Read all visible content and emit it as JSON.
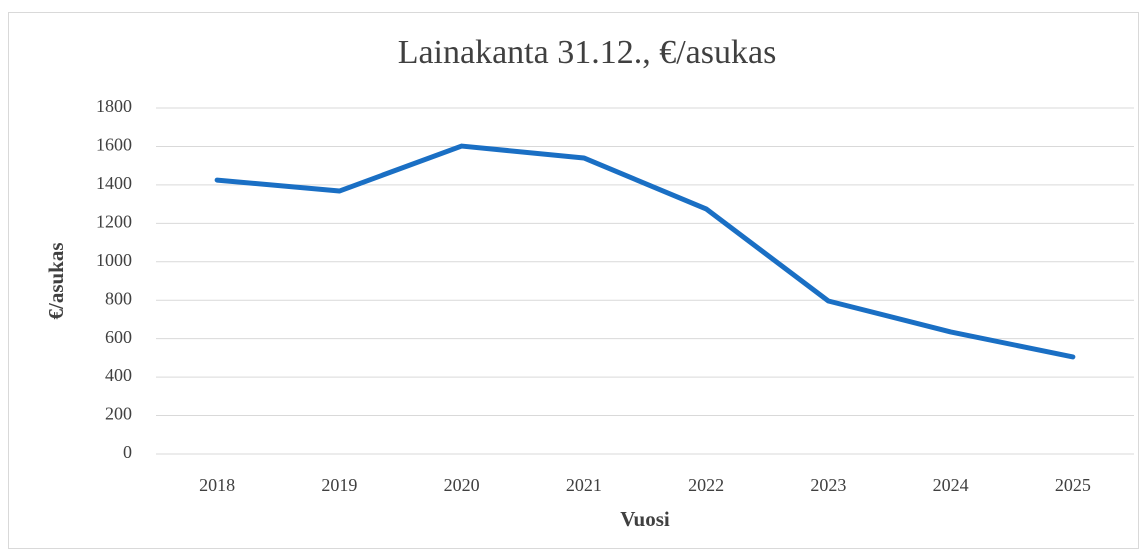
{
  "chart_data": {
    "type": "line",
    "title": "Lainakanta 31.12., €/asukas",
    "x_label": "Vuosi",
    "y_label": "€/asukas",
    "categories": [
      "2018",
      "2019",
      "2020",
      "2021",
      "2022",
      "2023",
      "2024",
      "2025"
    ],
    "series": [
      {
        "name": "Lainakanta",
        "color": "#1a6fc4",
        "values": [
          1425,
          1368,
          1602,
          1540,
          1275,
          796,
          635,
          505
        ]
      }
    ],
    "ylim": [
      0,
      1800
    ],
    "yticks": [
      0,
      200,
      400,
      600,
      800,
      1000,
      1200,
      1400,
      1600,
      1800
    ],
    "grid": true
  }
}
